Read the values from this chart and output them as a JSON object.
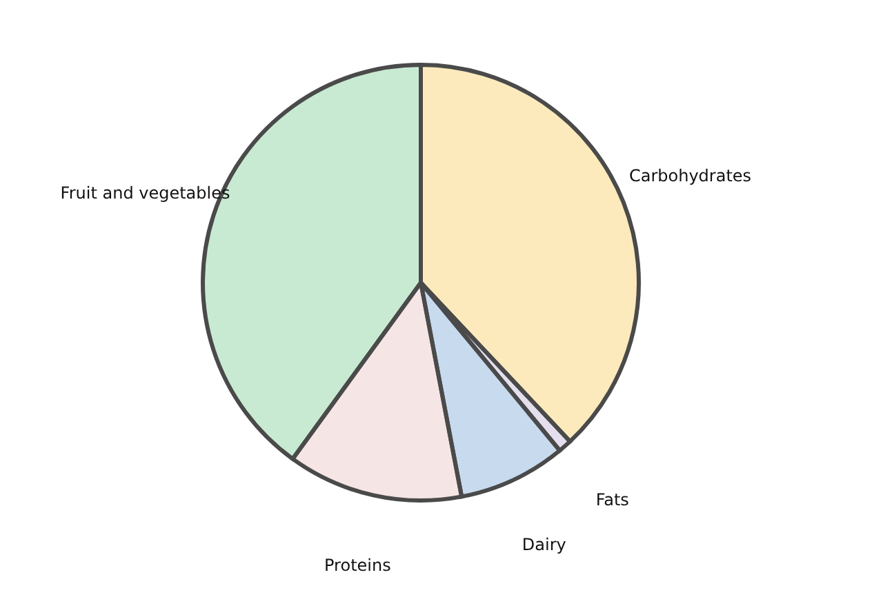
{
  "chart_data": {
    "type": "pie",
    "categories": [
      "Carbohydrates",
      "Fats",
      "Dairy",
      "Proteins",
      "Fruit and vegetables"
    ],
    "values": [
      38,
      1,
      8,
      13,
      40
    ],
    "colors": [
      "#f5b820",
      "#a995c4",
      "#4a86c8",
      "#e0aaa8",
      "#4bb86a"
    ]
  }
}
